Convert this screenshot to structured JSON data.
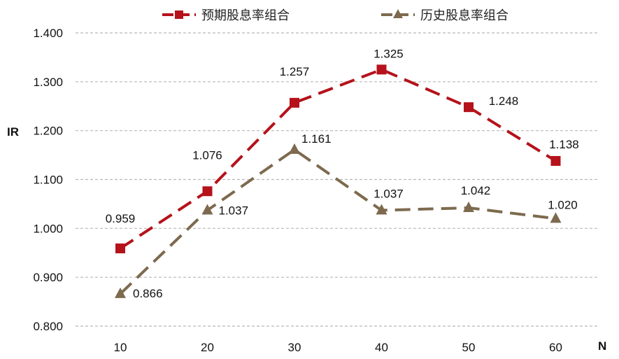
{
  "chart_data": {
    "type": "line",
    "title": "",
    "xlabel": "N",
    "ylabel": "IR",
    "categories": [
      10,
      20,
      30,
      40,
      50,
      60
    ],
    "ylim": [
      0.8,
      1.4
    ],
    "yticks": [
      "0.800",
      "0.900",
      "1.000",
      "1.100",
      "1.200",
      "1.300",
      "1.400"
    ],
    "grid": "horizontal-dashed",
    "legend": "top",
    "series": [
      {
        "name": "预期股息率组合",
        "values": [
          0.959,
          1.076,
          1.257,
          1.325,
          1.248,
          1.138
        ],
        "labels": [
          "0.959",
          "1.076",
          "1.257",
          "1.325",
          "1.248",
          "1.138"
        ],
        "color": "#B5121B",
        "marker": "square",
        "line": "dashed"
      },
      {
        "name": "历史股息率组合",
        "values": [
          0.866,
          1.037,
          1.161,
          1.037,
          1.042,
          1.02
        ],
        "labels": [
          "0.866",
          "1.037",
          "1.161",
          "1.037",
          "1.042",
          "1.020"
        ],
        "color": "#7D6A4E",
        "marker": "triangle",
        "line": "dashed"
      }
    ]
  }
}
